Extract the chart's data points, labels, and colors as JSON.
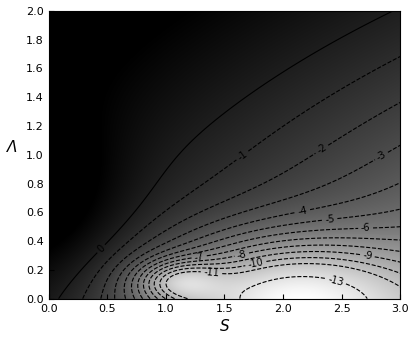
{
  "xlabel": "S",
  "ylabel": "Λ",
  "xlim": [
    0,
    3
  ],
  "ylim": [
    0,
    2
  ],
  "xticks": [
    0,
    0.5,
    1.0,
    1.5,
    2.0,
    2.5,
    3.0
  ],
  "yticks": [
    0,
    0.2,
    0.4,
    0.6,
    0.8,
    1.0,
    1.2,
    1.4,
    1.6,
    1.8,
    2.0
  ],
  "contour_levels": [
    -13,
    -11,
    -10,
    -9,
    -8,
    -7,
    -6,
    -5,
    -4,
    -3,
    -2,
    -1,
    0
  ],
  "vmin": -15,
  "vmax": 2,
  "figsize": [
    4.16,
    3.41
  ],
  "dpi": 100
}
